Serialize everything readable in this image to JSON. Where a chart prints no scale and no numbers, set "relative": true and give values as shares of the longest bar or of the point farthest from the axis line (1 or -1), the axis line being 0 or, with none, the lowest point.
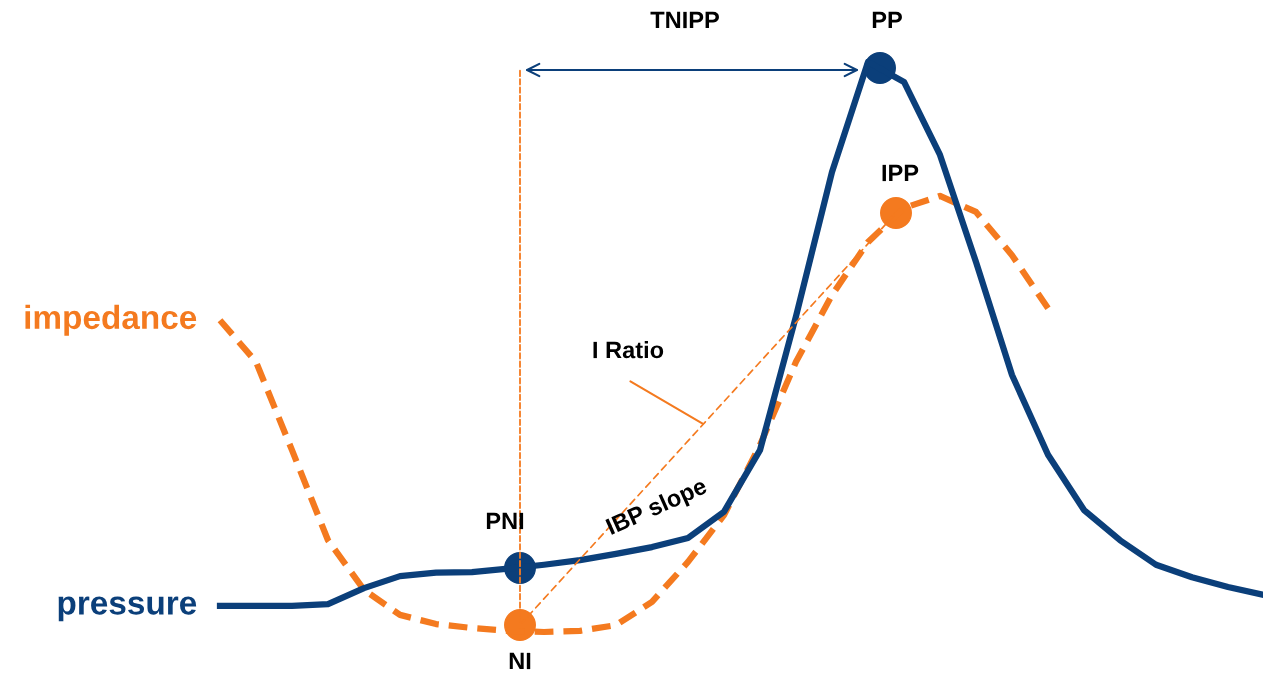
{
  "chart_data": {
    "type": "line",
    "relative": true,
    "categories": [
      null,
      null,
      null,
      null,
      null,
      null,
      null,
      null,
      null,
      null,
      null,
      null,
      null,
      null,
      null,
      null,
      null,
      null,
      null,
      null,
      null,
      null,
      null,
      null,
      null,
      null,
      null,
      null,
      null,
      null
    ],
    "series": [
      {
        "name": "impedance",
        "color": "#f47a1f",
        "line_style": "dashed",
        "values": [
          0.547,
          0.474,
          0.319,
          0.161,
          0.074,
          0.03,
          0.014,
          0.007,
          0.002,
          0,
          0.002,
          0.012,
          0.053,
          0.123,
          0.205,
          0.328,
          0.474,
          0.591,
          0.684,
          0.744,
          0.765,
          0.737,
          0.661,
          0.568,
          null,
          null,
          null,
          null,
          null,
          null
        ]
      },
      {
        "name": "pressure",
        "color": "#0b3f7a",
        "line_style": "solid",
        "values": [
          0.046,
          0.046,
          0.046,
          0.049,
          0.077,
          0.098,
          0.104,
          0.105,
          0.111,
          0.118,
          0.126,
          0.137,
          0.149,
          0.165,
          0.211,
          0.319,
          0.554,
          0.807,
          1.0,
          0.965,
          0.837,
          0.649,
          0.451,
          0.311,
          0.214,
          0.161,
          0.118,
          0.096,
          0.079,
          0.065
        ]
      }
    ],
    "annotations": [
      "TNIPP",
      "PP",
      "IPP",
      "PNI",
      "NI",
      "I Ratio",
      "IBP slope"
    ]
  }
}
